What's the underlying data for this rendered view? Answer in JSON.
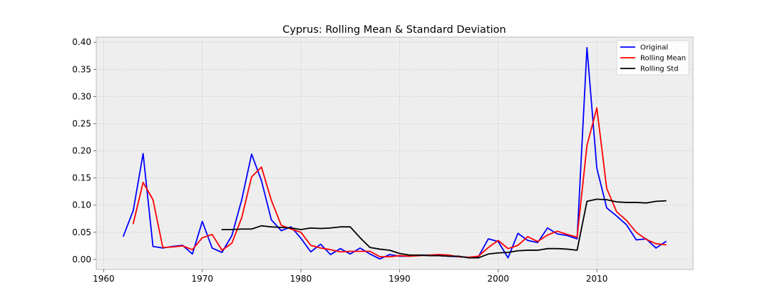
{
  "chart_data": {
    "type": "line",
    "title": "Cyprus: Rolling Mean & Standard Deviation",
    "xlabel": "",
    "ylabel": "",
    "xlim": [
      1959.25,
      2019.75
    ],
    "ylim": [
      -0.0185,
      0.4095
    ],
    "x_ticks": [
      1960,
      1970,
      1980,
      1990,
      2000,
      2010
    ],
    "y_ticks": [
      0.0,
      0.05,
      0.1,
      0.15,
      0.2,
      0.25,
      0.3,
      0.35,
      0.4
    ],
    "y_tick_labels": [
      "0.00",
      "0.05",
      "0.10",
      "0.15",
      "0.20",
      "0.25",
      "0.30",
      "0.35",
      "0.40"
    ],
    "grid": true,
    "legend_position": "top-right",
    "colors": {
      "plot_background": "#eeeeee",
      "grid": "#cbcbcb",
      "frame": "#bcbcbc"
    },
    "series": [
      {
        "name": "Original",
        "color": "#0000ff",
        "x": [
          1962,
          1963,
          1964,
          1965,
          1966,
          1967,
          1968,
          1969,
          1970,
          1971,
          1972,
          1973,
          1974,
          1975,
          1976,
          1977,
          1978,
          1979,
          1980,
          1981,
          1982,
          1983,
          1984,
          1985,
          1986,
          1987,
          1988,
          1989,
          1990,
          1991,
          1992,
          1993,
          1994,
          1995,
          1996,
          1997,
          1998,
          1999,
          2000,
          2001,
          2002,
          2003,
          2004,
          2005,
          2006,
          2007,
          2008,
          2009,
          2010,
          2011,
          2012,
          2013,
          2014,
          2015,
          2016,
          2017
        ],
        "values": [
          0.043,
          0.09,
          0.195,
          0.024,
          0.021,
          0.024,
          0.026,
          0.01,
          0.07,
          0.021,
          0.013,
          0.044,
          0.11,
          0.194,
          0.145,
          0.073,
          0.053,
          0.06,
          0.039,
          0.014,
          0.028,
          0.009,
          0.02,
          0.01,
          0.021,
          0.01,
          0.001,
          0.009,
          0.006,
          0.006,
          0.008,
          0.008,
          0.007,
          0.006,
          0.005,
          0.004,
          0.005,
          0.038,
          0.033,
          0.003,
          0.048,
          0.035,
          0.031,
          0.058,
          0.047,
          0.044,
          0.038,
          0.39,
          0.168,
          0.095,
          0.08,
          0.064,
          0.036,
          0.038,
          0.021,
          0.033
        ]
      },
      {
        "name": "Rolling Mean",
        "color": "#ff0000",
        "x": [
          1963,
          1964,
          1965,
          1966,
          1967,
          1968,
          1969,
          1970,
          1971,
          1972,
          1973,
          1974,
          1975,
          1976,
          1977,
          1978,
          1979,
          1980,
          1981,
          1982,
          1983,
          1984,
          1985,
          1986,
          1987,
          1988,
          1989,
          1990,
          1991,
          1992,
          1993,
          1994,
          1995,
          1996,
          1997,
          1998,
          1999,
          2000,
          2001,
          2002,
          2003,
          2004,
          2005,
          2006,
          2007,
          2008,
          2009,
          2010,
          2011,
          2012,
          2013,
          2014,
          2015,
          2016,
          2017
        ],
        "values": [
          0.066,
          0.142,
          0.11,
          0.022,
          0.023,
          0.025,
          0.018,
          0.04,
          0.046,
          0.017,
          0.03,
          0.077,
          0.152,
          0.17,
          0.109,
          0.063,
          0.056,
          0.05,
          0.026,
          0.021,
          0.018,
          0.014,
          0.015,
          0.015,
          0.015,
          0.005,
          0.005,
          0.007,
          0.006,
          0.007,
          0.008,
          0.009,
          0.008,
          0.005,
          0.004,
          0.006,
          0.022,
          0.035,
          0.02,
          0.026,
          0.042,
          0.033,
          0.045,
          0.052,
          0.046,
          0.041,
          0.21,
          0.279,
          0.131,
          0.088,
          0.072,
          0.05,
          0.037,
          0.029,
          0.027
        ]
      },
      {
        "name": "Rolling Std",
        "color": "#000000",
        "x": [
          1972,
          1973,
          1974,
          1975,
          1976,
          1977,
          1978,
          1979,
          1980,
          1981,
          1982,
          1983,
          1984,
          1985,
          1986,
          1987,
          1988,
          1989,
          1990,
          1991,
          1992,
          1993,
          1994,
          1995,
          1996,
          1997,
          1998,
          1999,
          2000,
          2001,
          2002,
          2003,
          2004,
          2005,
          2006,
          2007,
          2008,
          2009,
          2010,
          2011,
          2012,
          2013,
          2014,
          2015,
          2016,
          2017
        ],
        "values": [
          0.055,
          0.055,
          0.056,
          0.056,
          0.062,
          0.06,
          0.059,
          0.058,
          0.055,
          0.058,
          0.057,
          0.058,
          0.06,
          0.06,
          0.04,
          0.022,
          0.019,
          0.017,
          0.011,
          0.008,
          0.008,
          0.007,
          0.007,
          0.006,
          0.006,
          0.003,
          0.003,
          0.01,
          0.012,
          0.013,
          0.016,
          0.017,
          0.017,
          0.02,
          0.02,
          0.019,
          0.017,
          0.107,
          0.111,
          0.11,
          0.106,
          0.105,
          0.105,
          0.104,
          0.107,
          0.108
        ]
      }
    ]
  }
}
